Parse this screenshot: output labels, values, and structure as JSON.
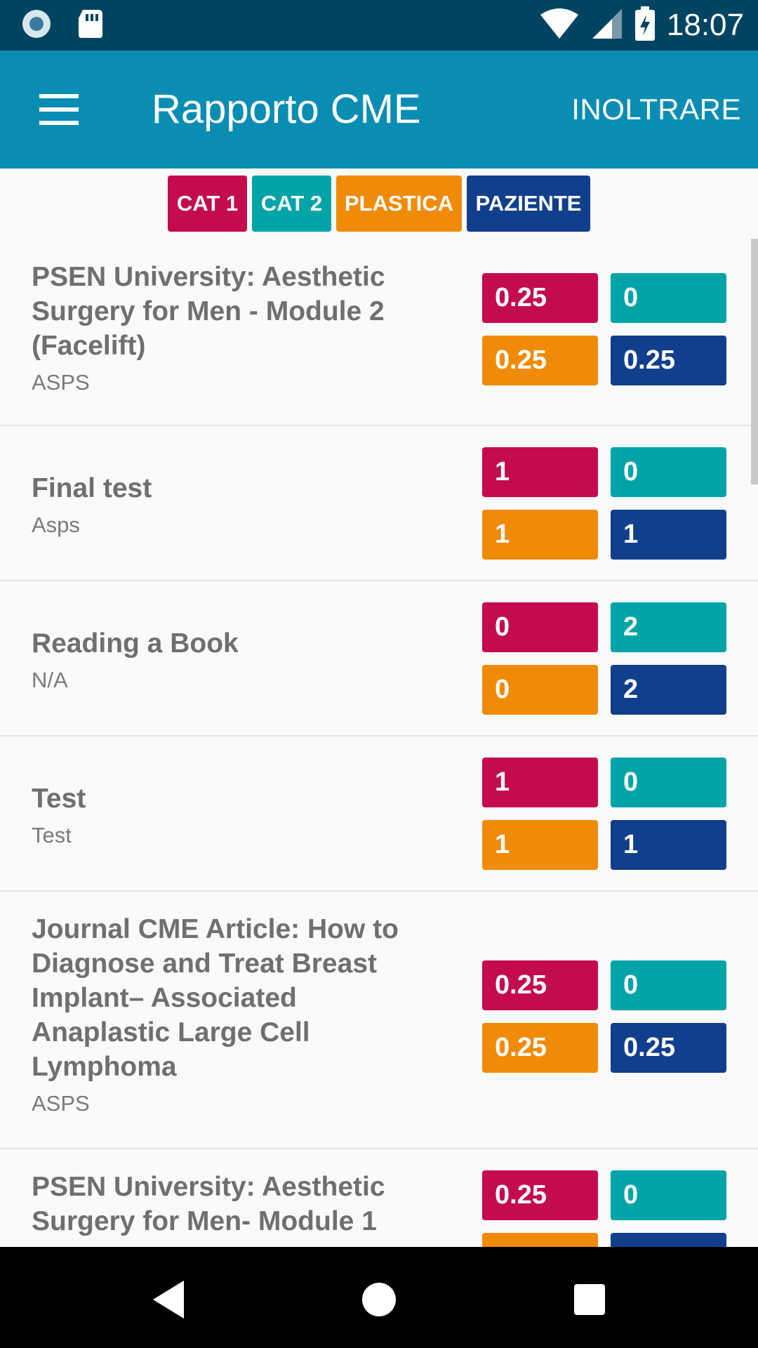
{
  "status_bar": {
    "time": "18:07",
    "left_icons": [
      "notification-circle-icon",
      "sd-card-icon"
    ],
    "right_icons": [
      "wifi-icon",
      "cellular-signal-icon",
      "battery-charging-icon"
    ]
  },
  "app_bar": {
    "title": "Rapporto CME",
    "action_label": "INOLTRARE",
    "menu_icon": "hamburger-menu-icon"
  },
  "legend": [
    {
      "label": "CAT 1",
      "color": "#c40b4f"
    },
    {
      "label": "CAT 2",
      "color": "#00a4a6"
    },
    {
      "label": "PLASTICA",
      "color": "#f08b08"
    },
    {
      "label": "PAZIENTE",
      "color": "#123f8c"
    }
  ],
  "items": [
    {
      "title": "PSEN University: Aesthetic Surgery for Men - Module 2 (Facelift)",
      "source": "ASPS",
      "cat1": "0.25",
      "cat2": "0",
      "plastic": "0.25",
      "patient": "0.25"
    },
    {
      "title": "Final test",
      "source": "Asps",
      "cat1": "1",
      "cat2": "0",
      "plastic": "1",
      "patient": "1"
    },
    {
      "title": "Reading a Book",
      "source": "N/A",
      "cat1": "0",
      "cat2": "2",
      "plastic": "0",
      "patient": "2"
    },
    {
      "title": "Test",
      "source": "Test",
      "cat1": "1",
      "cat2": "0",
      "plastic": "1",
      "patient": "1"
    },
    {
      "title": "Journal CME Article: How to Diagnose and Treat Breast Implant– Associated Anaplastic Large Cell Lymphoma",
      "source": "ASPS",
      "cat1": "0.25",
      "cat2": "0",
      "plastic": "0.25",
      "patient": "0.25"
    },
    {
      "title": "PSEN University: Aesthetic Surgery for Men- Module 1",
      "source": "",
      "cat1": "0.25",
      "cat2": "0",
      "plastic": "",
      "patient": ""
    }
  ],
  "nav_bar": {
    "icons": [
      "back-icon",
      "home-icon",
      "recents-icon"
    ]
  }
}
